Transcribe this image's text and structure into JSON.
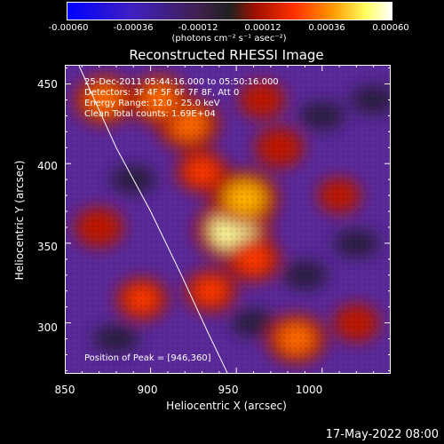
{
  "colorbar": {
    "ticks": [
      "-0.00060",
      "-0.00036",
      "-0.00012",
      "0.00012",
      "0.00036",
      "0.00060"
    ],
    "units": "(photons cm⁻² s⁻¹ asec⁻²)"
  },
  "chart_data": {
    "type": "heatmap",
    "title": "Reconstructed RHESSI Image",
    "xlabel": "Heliocentric X (arcsec)",
    "ylabel": "Heliocentric Y (arcsec)",
    "xlim": [
      850,
      1040
    ],
    "ylim": [
      268,
      462
    ],
    "x_ticks": [
      "850",
      "900",
      "950",
      "1000"
    ],
    "y_ticks": [
      "300",
      "350",
      "400",
      "450"
    ],
    "color_range": [
      -0.0006,
      0.0006
    ],
    "colormap": [
      "#0000ff",
      "#6020a0",
      "#202020",
      "#a01000",
      "#ff3000",
      "#ff9a00",
      "#ffff80",
      "#ffffff"
    ],
    "annotations": {
      "time": "25-Dec-2011 05:44:16.000 to 05:50:16.000",
      "detectors": "Detectors: 3F 4F 5F 6F 7F 8F, Att 0",
      "energy": "Energy Range: 12.0 - 25.0 keV",
      "clean": "Clean    Total counts: 1.69E+04",
      "peak": "Position of Peak = [946,360]"
    },
    "peak": [
      946,
      360
    ],
    "sources": [
      {
        "x": 948,
        "y": 358,
        "level": 0.98
      },
      {
        "x": 955,
        "y": 378,
        "level": 0.85
      },
      {
        "x": 922,
        "y": 425,
        "level": 0.75
      },
      {
        "x": 905,
        "y": 440,
        "level": 0.7
      },
      {
        "x": 873,
        "y": 440,
        "level": 0.7
      },
      {
        "x": 985,
        "y": 290,
        "level": 0.7
      },
      {
        "x": 935,
        "y": 320,
        "level": 0.55
      },
      {
        "x": 895,
        "y": 315,
        "level": 0.55
      },
      {
        "x": 960,
        "y": 340,
        "level": 0.6
      },
      {
        "x": 930,
        "y": 395,
        "level": 0.55
      },
      {
        "x": 975,
        "y": 410,
        "level": 0.5
      },
      {
        "x": 1010,
        "y": 380,
        "level": 0.4
      },
      {
        "x": 1020,
        "y": 300,
        "level": 0.45
      },
      {
        "x": 870,
        "y": 360,
        "level": 0.5
      },
      {
        "x": 965,
        "y": 440,
        "level": 0.45
      }
    ],
    "limb": [
      [
        858,
        462
      ],
      [
        880,
        410
      ],
      [
        900,
        370
      ],
      [
        918,
        330
      ],
      [
        933,
        295
      ],
      [
        945,
        268
      ]
    ]
  },
  "timestamp": "17-May-2022 08:00"
}
